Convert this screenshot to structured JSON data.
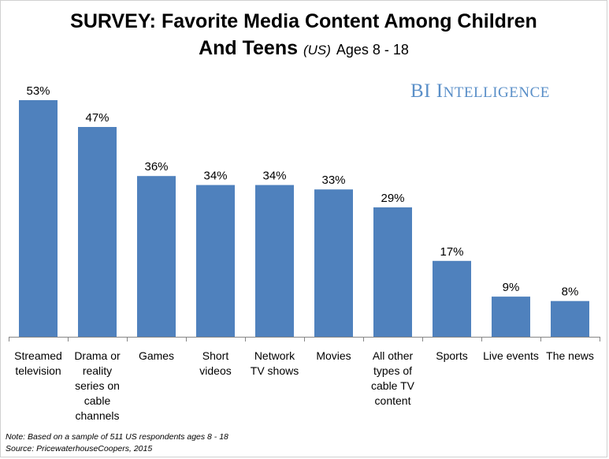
{
  "title": {
    "line1": "SURVEY: Favorite Media Content Among Children",
    "line2_main": "And Teens",
    "line2_region": "(US)",
    "line2_ages": "Ages 8 - 18"
  },
  "brand": {
    "first": "BI",
    "initial": "I",
    "rest": "NTELLIGENCE"
  },
  "notes": {
    "note": "Note: Based on a sample of 511 US respondents ages 8 - 18",
    "source": "Source: PricewaterhouseCoopers, 2015"
  },
  "colors": {
    "bar": "#4f81bd",
    "axis": "#868686",
    "brand": "#5a8fc8"
  },
  "chart_data": {
    "type": "bar",
    "categories": [
      [
        "Streamed",
        "television"
      ],
      [
        "Drama or",
        "reality",
        "series on",
        "cable",
        "channels"
      ],
      [
        "Games"
      ],
      [
        "Short",
        "videos"
      ],
      [
        "Network",
        "TV shows"
      ],
      [
        "Movies"
      ],
      [
        "All other",
        "types of",
        "cable TV",
        "content"
      ],
      [
        "Sports"
      ],
      [
        "Live events"
      ],
      [
        "The news"
      ]
    ],
    "values": [
      53,
      47,
      36,
      34,
      34,
      33,
      29,
      17,
      9,
      8
    ],
    "value_labels": [
      "53%",
      "47%",
      "36%",
      "34%",
      "34%",
      "33%",
      "29%",
      "17%",
      "9%",
      "8%"
    ],
    "ylim": [
      0,
      60
    ],
    "grid": false,
    "legend": "none"
  }
}
